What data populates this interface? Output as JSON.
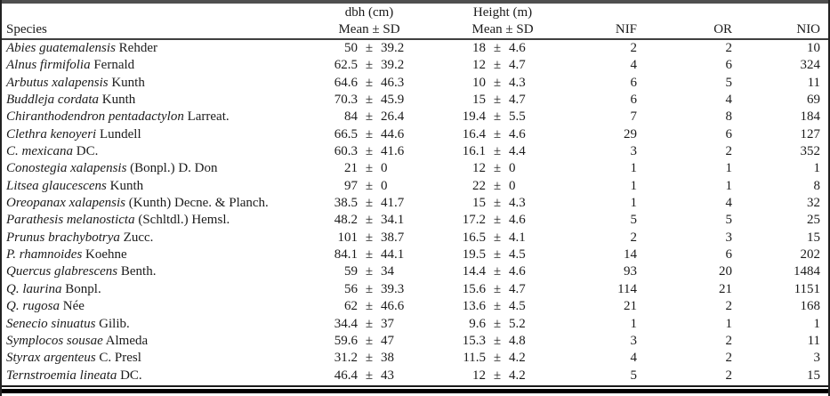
{
  "table": {
    "pm": "±",
    "header": {
      "species": "Species",
      "dbh_group": "dbh (cm)",
      "height_group": "Height (m)",
      "mean_sd": "Mean ± SD",
      "nif": "NIF",
      "or": "OR",
      "nio": "NIO"
    },
    "rows": [
      {
        "species": "Abies guatemalensis",
        "authority": "Rehder",
        "dbh_mean": "50",
        "dbh_sd": "39.2",
        "height_mean": "18",
        "height_sd": "4.6",
        "nif": "2",
        "or": "2",
        "nio": "10"
      },
      {
        "species": "Alnus firmifolia",
        "authority": "Fernald",
        "dbh_mean": "62.5",
        "dbh_sd": "39.2",
        "height_mean": "12",
        "height_sd": "4.7",
        "nif": "4",
        "or": "6",
        "nio": "324"
      },
      {
        "species": "Arbutus xalapensis",
        "authority": "Kunth",
        "dbh_mean": "64.6",
        "dbh_sd": "46.3",
        "height_mean": "10",
        "height_sd": "4.3",
        "nif": "6",
        "or": "5",
        "nio": "11"
      },
      {
        "species": "Buddleja cordata",
        "authority": "Kunth",
        "dbh_mean": "70.3",
        "dbh_sd": "45.9",
        "height_mean": "15",
        "height_sd": "4.7",
        "nif": "6",
        "or": "4",
        "nio": "69"
      },
      {
        "species": "Chiranthodendron pentadactylon",
        "authority": "Larreat.",
        "dbh_mean": "84",
        "dbh_sd": "26.4",
        "height_mean": "19.4",
        "height_sd": "5.5",
        "nif": "7",
        "or": "8",
        "nio": "184"
      },
      {
        "species": "Clethra kenoyeri",
        "authority": "Lundell",
        "dbh_mean": "66.5",
        "dbh_sd": "44.6",
        "height_mean": "16.4",
        "height_sd": "4.6",
        "nif": "29",
        "or": "6",
        "nio": "127"
      },
      {
        "species": "C. mexicana",
        "authority": "DC.",
        "dbh_mean": "60.3",
        "dbh_sd": "41.6",
        "height_mean": "16.1",
        "height_sd": "4.4",
        "nif": "3",
        "or": "2",
        "nio": "352"
      },
      {
        "species": "Conostegia xalapensis",
        "authority": "(Bonpl.) D. Don",
        "dbh_mean": "21",
        "dbh_sd": "0",
        "height_mean": "12",
        "height_sd": "0",
        "nif": "1",
        "or": "1",
        "nio": "1"
      },
      {
        "species": "Litsea glaucescens",
        "authority": "Kunth",
        "dbh_mean": "97",
        "dbh_sd": "0",
        "height_mean": "22",
        "height_sd": "0",
        "nif": "1",
        "or": "1",
        "nio": "8"
      },
      {
        "species": "Oreopanax xalapensis",
        "authority": "(Kunth) Decne. & Planch.",
        "dbh_mean": "38.5",
        "dbh_sd": "41.7",
        "height_mean": "15",
        "height_sd": "4.3",
        "nif": "1",
        "or": "4",
        "nio": "32"
      },
      {
        "species": "Parathesis melanosticta",
        "authority": "(Schltdl.) Hemsl.",
        "dbh_mean": "48.2",
        "dbh_sd": "34.1",
        "height_mean": "17.2",
        "height_sd": "4.6",
        "nif": "5",
        "or": "5",
        "nio": "25"
      },
      {
        "species": "Prunus brachybotrya",
        "authority": "Zucc.",
        "dbh_mean": "101",
        "dbh_sd": "38.7",
        "height_mean": "16.5",
        "height_sd": "4.1",
        "nif": "2",
        "or": "3",
        "nio": "15"
      },
      {
        "species": "P. rhamnoides",
        "authority": "Koehne",
        "dbh_mean": "84.1",
        "dbh_sd": "44.1",
        "height_mean": "19.5",
        "height_sd": "4.5",
        "nif": "14",
        "or": "6",
        "nio": "202"
      },
      {
        "species": "Quercus glabrescens",
        "authority": "Benth.",
        "dbh_mean": "59",
        "dbh_sd": "34",
        "height_mean": "14.4",
        "height_sd": "4.6",
        "nif": "93",
        "or": "20",
        "nio": "1484"
      },
      {
        "species": "Q. laurina",
        "authority": "Bonpl.",
        "dbh_mean": "56",
        "dbh_sd": "39.3",
        "height_mean": "15.6",
        "height_sd": "4.7",
        "nif": "114",
        "or": "21",
        "nio": "1151"
      },
      {
        "species": "Q. rugosa",
        "authority": "Née",
        "dbh_mean": "62",
        "dbh_sd": "46.6",
        "height_mean": "13.6",
        "height_sd": "4.5",
        "nif": "21",
        "or": "2",
        "nio": "168"
      },
      {
        "species": "Senecio sinuatus",
        "authority": "Gilib.",
        "dbh_mean": "34.4",
        "dbh_sd": "37",
        "height_mean": "9.6",
        "height_sd": "5.2",
        "nif": "1",
        "or": "1",
        "nio": "1"
      },
      {
        "species": "Symplocos sousae",
        "authority": "Almeda",
        "dbh_mean": "59.6",
        "dbh_sd": "47",
        "height_mean": "15.3",
        "height_sd": "4.8",
        "nif": "3",
        "or": "2",
        "nio": "11"
      },
      {
        "species": "Styrax argenteus",
        "authority": "C. Presl",
        "dbh_mean": "31.2",
        "dbh_sd": "38",
        "height_mean": "11.5",
        "height_sd": "4.2",
        "nif": "4",
        "or": "2",
        "nio": "3"
      },
      {
        "species": "Ternstroemia lineata",
        "authority": "DC.",
        "dbh_mean": "46.4",
        "dbh_sd": "43",
        "height_mean": "12",
        "height_sd": "4.2",
        "nif": "5",
        "or": "2",
        "nio": "15"
      }
    ]
  },
  "colors": {
    "text": "#1b1b1b",
    "background": "#ffffff",
    "rule_top": "#4f4f4f",
    "rule_header": "#3f3f3f",
    "rule_bottom_thin": "#1a1a1a",
    "rule_bottom_thick": "#000000"
  }
}
